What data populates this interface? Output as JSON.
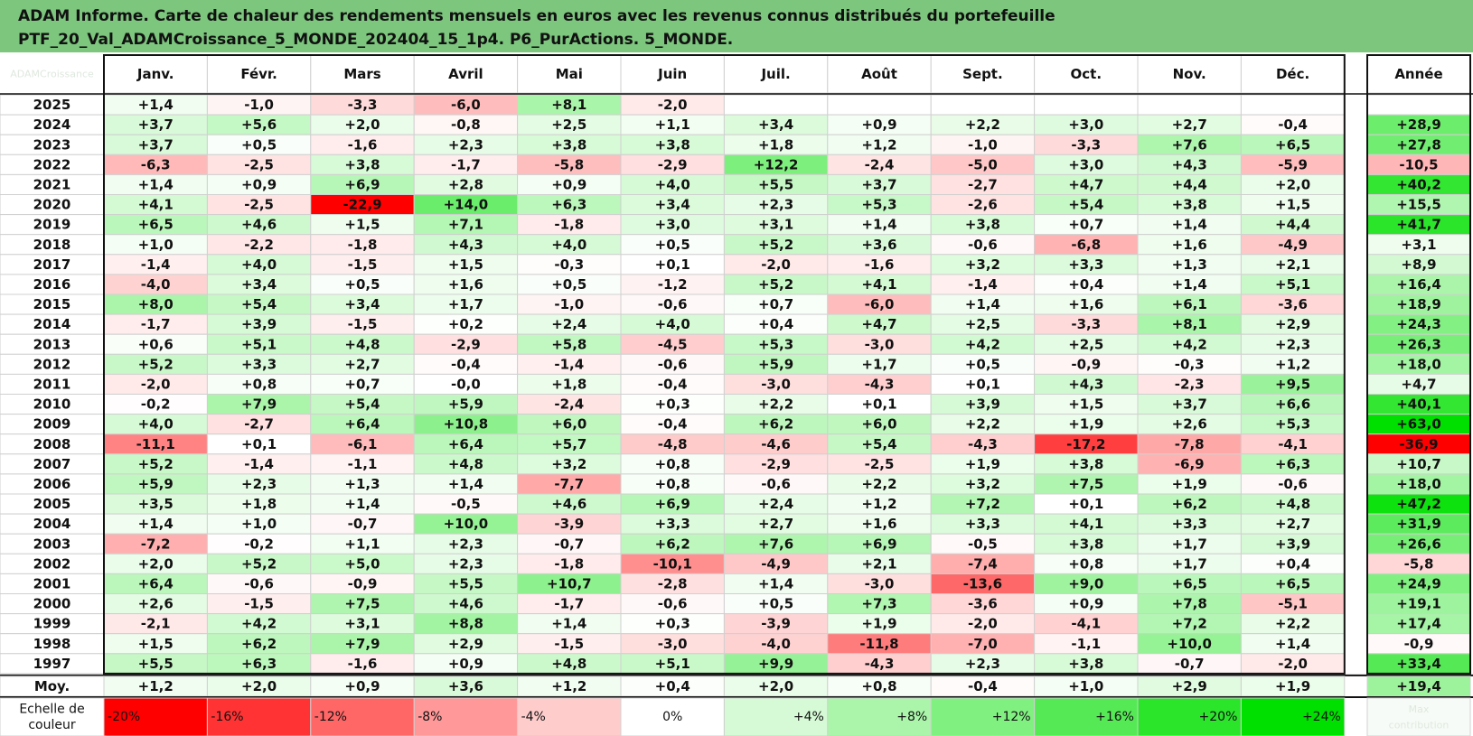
{
  "title": {
    "line1": "ADAM Informe. Carte de chaleur des rendements mensuels en euros avec les revenus connus distribués du portefeuille",
    "line2": "PTF_20_Val_ADAMCroissance_5_MONDE_202404_15_1p4. P6_PurActions. 5_MONDE."
  },
  "chart_data": {
    "type": "heatmap",
    "columns": [
      "Janv.",
      "Févr.",
      "Mars",
      "Avril",
      "Mai",
      "Juin",
      "Juil.",
      "Août",
      "Sept.",
      "Oct.",
      "Nov.",
      "Déc."
    ],
    "year_column_label": "Année",
    "corner_label": "ADAMCroissance",
    "rows": [
      {
        "label": "2025",
        "months": [
          "+1,4",
          "-1,0",
          "-3,3",
          "-6,0",
          "+8,1",
          "-2,0",
          "",
          "",
          "",
          "",
          "",
          ""
        ],
        "year": ""
      },
      {
        "label": "2024",
        "months": [
          "+3,7",
          "+5,6",
          "+2,0",
          "-0,8",
          "+2,5",
          "+1,1",
          "+3,4",
          "+0,9",
          "+2,2",
          "+3,0",
          "+2,7",
          "-0,4"
        ],
        "year": "+28,9"
      },
      {
        "label": "2023",
        "months": [
          "+3,7",
          "+0,5",
          "-1,6",
          "+2,3",
          "+3,8",
          "+3,8",
          "+1,8",
          "+1,2",
          "-1,0",
          "-3,3",
          "+7,6",
          "+6,5"
        ],
        "year": "+27,8"
      },
      {
        "label": "2022",
        "months": [
          "-6,3",
          "-2,5",
          "+3,8",
          "-1,7",
          "-5,8",
          "-2,9",
          "+12,2",
          "-2,4",
          "-5,0",
          "+3,0",
          "+4,3",
          "-5,9"
        ],
        "year": "-10,5"
      },
      {
        "label": "2021",
        "months": [
          "+1,4",
          "+0,9",
          "+6,9",
          "+2,8",
          "+0,9",
          "+4,0",
          "+5,5",
          "+3,7",
          "-2,7",
          "+4,7",
          "+4,4",
          "+2,0"
        ],
        "year": "+40,2"
      },
      {
        "label": "2020",
        "months": [
          "+4,1",
          "-2,5",
          "-22,9",
          "+14,0",
          "+6,3",
          "+3,4",
          "+2,3",
          "+5,3",
          "-2,6",
          "+5,4",
          "+3,8",
          "+1,5"
        ],
        "year": "+15,5"
      },
      {
        "label": "2019",
        "months": [
          "+6,5",
          "+4,6",
          "+1,5",
          "+7,1",
          "-1,8",
          "+3,0",
          "+3,1",
          "+1,4",
          "+3,8",
          "+0,7",
          "+1,4",
          "+4,4"
        ],
        "year": "+41,7"
      },
      {
        "label": "2018",
        "months": [
          "+1,0",
          "-2,2",
          "-1,8",
          "+4,3",
          "+4,0",
          "+0,5",
          "+5,2",
          "+3,6",
          "-0,6",
          "-6,8",
          "+1,6",
          "-4,9"
        ],
        "year": "+3,1"
      },
      {
        "label": "2017",
        "months": [
          "-1,4",
          "+4,0",
          "-1,5",
          "+1,5",
          "-0,3",
          "+0,1",
          "-2,0",
          "-1,6",
          "+3,2",
          "+3,3",
          "+1,3",
          "+2,1"
        ],
        "year": "+8,9"
      },
      {
        "label": "2016",
        "months": [
          "-4,0",
          "+3,4",
          "+0,5",
          "+1,6",
          "+0,5",
          "-1,2",
          "+5,2",
          "+4,1",
          "-1,4",
          "+0,4",
          "+1,4",
          "+5,1"
        ],
        "year": "+16,4"
      },
      {
        "label": "2015",
        "months": [
          "+8,0",
          "+5,4",
          "+3,4",
          "+1,7",
          "-1,0",
          "-0,6",
          "+0,7",
          "-6,0",
          "+1,4",
          "+1,6",
          "+6,1",
          "-3,6"
        ],
        "year": "+18,9"
      },
      {
        "label": "2014",
        "months": [
          "-1,7",
          "+3,9",
          "-1,5",
          "+0,2",
          "+2,4",
          "+4,0",
          "+0,4",
          "+4,7",
          "+2,5",
          "-3,3",
          "+8,1",
          "+2,9"
        ],
        "year": "+24,3"
      },
      {
        "label": "2013",
        "months": [
          "+0,6",
          "+5,1",
          "+4,8",
          "-2,9",
          "+5,8",
          "-4,5",
          "+5,3",
          "-3,0",
          "+4,2",
          "+2,5",
          "+4,2",
          "+2,3"
        ],
        "year": "+26,3"
      },
      {
        "label": "2012",
        "months": [
          "+5,2",
          "+3,3",
          "+2,7",
          "-0,4",
          "-1,4",
          "-0,6",
          "+5,9",
          "+1,7",
          "+0,5",
          "-0,9",
          "-0,3",
          "+1,2"
        ],
        "year": "+18,0"
      },
      {
        "label": "2011",
        "months": [
          "-2,0",
          "+0,8",
          "+0,7",
          "-0,0",
          "+1,8",
          "-0,4",
          "-3,0",
          "-4,3",
          "+0,1",
          "+4,3",
          "-2,3",
          "+9,5"
        ],
        "year": "+4,7"
      },
      {
        "label": "2010",
        "months": [
          "-0,2",
          "+7,9",
          "+5,4",
          "+5,9",
          "-2,4",
          "+0,3",
          "+2,2",
          "+0,1",
          "+3,9",
          "+1,5",
          "+3,7",
          "+6,6"
        ],
        "year": "+40,1"
      },
      {
        "label": "2009",
        "months": [
          "+4,0",
          "-2,7",
          "+6,4",
          "+10,8",
          "+6,0",
          "-0,4",
          "+6,2",
          "+6,0",
          "+2,2",
          "+1,9",
          "+2,6",
          "+5,3"
        ],
        "year": "+63,0"
      },
      {
        "label": "2008",
        "months": [
          "-11,1",
          "+0,1",
          "-6,1",
          "+6,4",
          "+5,7",
          "-4,8",
          "-4,6",
          "+5,4",
          "-4,3",
          "-17,2",
          "-7,8",
          "-4,1"
        ],
        "year": "-36,9"
      },
      {
        "label": "2007",
        "months": [
          "+5,2",
          "-1,4",
          "-1,1",
          "+4,8",
          "+3,2",
          "+0,8",
          "-2,9",
          "-2,5",
          "+1,9",
          "+3,8",
          "-6,9",
          "+6,3"
        ],
        "year": "+10,7"
      },
      {
        "label": "2006",
        "months": [
          "+5,9",
          "+2,3",
          "+1,3",
          "+1,4",
          "-7,7",
          "+0,8",
          "-0,6",
          "+2,2",
          "+3,2",
          "+7,5",
          "+1,9",
          "-0,6"
        ],
        "year": "+18,0"
      },
      {
        "label": "2005",
        "months": [
          "+3,5",
          "+1,8",
          "+1,4",
          "-0,5",
          "+4,6",
          "+6,9",
          "+2,4",
          "+1,2",
          "+7,2",
          "+0,1",
          "+6,2",
          "+4,8"
        ],
        "year": "+47,2"
      },
      {
        "label": "2004",
        "months": [
          "+1,4",
          "+1,0",
          "-0,7",
          "+10,0",
          "-3,9",
          "+3,3",
          "+2,7",
          "+1,6",
          "+3,3",
          "+4,1",
          "+3,3",
          "+2,7"
        ],
        "year": "+31,9"
      },
      {
        "label": "2003",
        "months": [
          "-7,2",
          "-0,2",
          "+1,1",
          "+2,3",
          "-0,7",
          "+6,2",
          "+7,6",
          "+6,9",
          "-0,5",
          "+3,8",
          "+1,7",
          "+3,9"
        ],
        "year": "+26,6"
      },
      {
        "label": "2002",
        "months": [
          "+2,0",
          "+5,2",
          "+5,0",
          "+2,3",
          "-1,8",
          "-10,1",
          "-4,9",
          "+2,1",
          "-7,4",
          "+0,8",
          "+1,7",
          "+0,4"
        ],
        "year": "-5,8"
      },
      {
        "label": "2001",
        "months": [
          "+6,4",
          "-0,6",
          "-0,9",
          "+5,5",
          "+10,7",
          "-2,8",
          "+1,4",
          "-3,0",
          "-13,6",
          "+9,0",
          "+6,5",
          "+6,5"
        ],
        "year": "+24,9"
      },
      {
        "label": "2000",
        "months": [
          "+2,6",
          "-1,5",
          "+7,5",
          "+4,6",
          "-1,7",
          "-0,6",
          "+0,5",
          "+7,3",
          "-3,6",
          "+0,9",
          "+7,8",
          "-5,1"
        ],
        "year": "+19,1"
      },
      {
        "label": "1999",
        "months": [
          "-2,1",
          "+4,2",
          "+3,1",
          "+8,8",
          "+1,4",
          "+0,3",
          "-3,9",
          "+1,9",
          "-2,0",
          "-4,1",
          "+7,2",
          "+2,2"
        ],
        "year": "+17,4"
      },
      {
        "label": "1998",
        "months": [
          "+1,5",
          "+6,2",
          "+7,9",
          "+2,9",
          "-1,5",
          "-3,0",
          "-4,0",
          "-11,8",
          "-7,0",
          "-1,1",
          "+10,0",
          "+1,4"
        ],
        "year": "-0,9"
      },
      {
        "label": "1997",
        "months": [
          "+5,5",
          "+6,3",
          "-1,6",
          "+0,9",
          "+4,8",
          "+5,1",
          "+9,9",
          "-4,3",
          "+2,3",
          "+3,8",
          "-0,7",
          "-2,0"
        ],
        "year": "+33,4"
      }
    ],
    "average": {
      "label": "Moy.",
      "months": [
        "+1,2",
        "+2,0",
        "+0,9",
        "+3,6",
        "+1,2",
        "+0,4",
        "+2,0",
        "+0,8",
        "-0,4",
        "+1,0",
        "+2,9",
        "+1,9"
      ],
      "year": "+19,4"
    },
    "scale": {
      "label_line1": "Echelle de",
      "label_line2": "couleur",
      "stops": [
        "-20%",
        "-16%",
        "-12%",
        "-8%",
        "-4%",
        "0%",
        "+4%",
        "+8%",
        "+12%",
        "+16%",
        "+20%",
        "+24%"
      ],
      "stop_values": [
        -20,
        -16,
        -12,
        -8,
        -4,
        0,
        4,
        8,
        12,
        16,
        20,
        24
      ],
      "faint_line1": "Max",
      "faint_line2": "contribution"
    },
    "colors": {
      "negative": "#ff0000",
      "positive": "#00e000",
      "neutral": "#ffffff",
      "title_bg": "#7dc67e"
    }
  }
}
